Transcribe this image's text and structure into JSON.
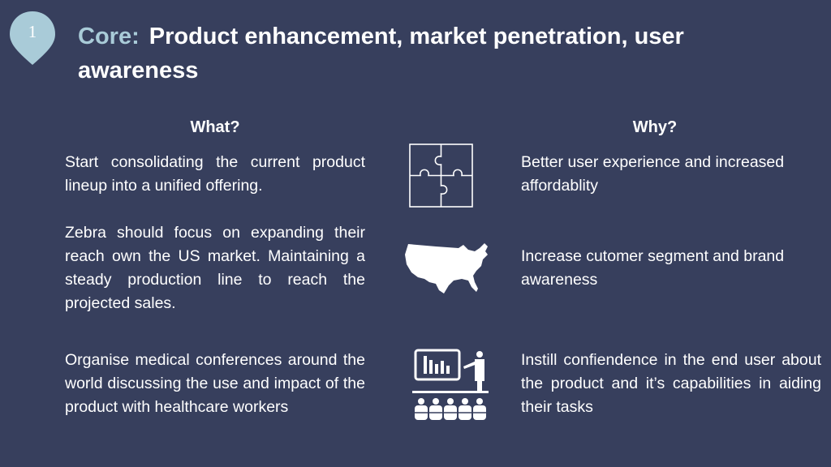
{
  "badge": {
    "number": "1"
  },
  "header": {
    "prefix": "Core:",
    "title": "Product enhancement, market penetration, user awareness"
  },
  "columns": {
    "what": "What?",
    "why": "Why?"
  },
  "rows": [
    {
      "what": "Start consolidating the current product lineup into a unified offering.",
      "icon": "puzzle-icon",
      "why": "Better user experience and increased affordablity"
    },
    {
      "what": "Zebra should focus on expanding their reach own the US market. Maintaining a steady production line to reach the projected sales.",
      "icon": "usa-map-icon",
      "why": "Increase cutomer segment and brand awareness"
    },
    {
      "what": "Organise medical conferences around the world discussing the use and impact of the product with healthcare workers",
      "icon": "conference-presentation-icon",
      "why": "Instill confiendence in the end user about the product and it’s capabilities in aiding their tasks"
    }
  ],
  "colors": {
    "background": "#373f5d",
    "badge": "#a9cbd8",
    "accent": "#a9cbd8",
    "text": "#ffffff"
  }
}
